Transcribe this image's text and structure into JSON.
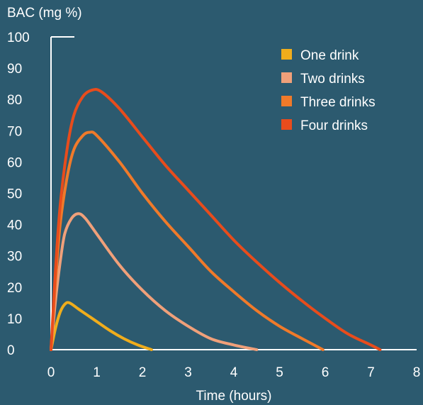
{
  "chart_data": {
    "type": "line",
    "ylabel": "BAC (mg %)",
    "xlabel": "Time (hours)",
    "xlim": [
      0,
      8
    ],
    "ylim": [
      0,
      100
    ],
    "x_ticks": [
      "0",
      "1",
      "2",
      "3",
      "4",
      "5",
      "6",
      "7",
      "8"
    ],
    "y_ticks": [
      "0",
      "10",
      "20",
      "30",
      "40",
      "50",
      "60",
      "70",
      "80",
      "90",
      "100"
    ],
    "grid": false,
    "legend_position": "top-right",
    "series": [
      {
        "name": "One drink",
        "color": "#f0ad1c",
        "points": [
          [
            0,
            0
          ],
          [
            0.1,
            7
          ],
          [
            0.2,
            12
          ],
          [
            0.3,
            14.5
          ],
          [
            0.4,
            15
          ],
          [
            0.6,
            13
          ],
          [
            0.8,
            11
          ],
          [
            1.0,
            9
          ],
          [
            1.3,
            6
          ],
          [
            1.6,
            3.5
          ],
          [
            1.9,
            1.5
          ],
          [
            2.2,
            0
          ]
        ]
      },
      {
        "name": "Two drinks",
        "color": "#f0a07a",
        "points": [
          [
            0,
            0
          ],
          [
            0.1,
            16
          ],
          [
            0.2,
            28
          ],
          [
            0.3,
            37
          ],
          [
            0.45,
            42
          ],
          [
            0.6,
            43.5
          ],
          [
            0.75,
            42
          ],
          [
            1.0,
            37
          ],
          [
            1.5,
            27
          ],
          [
            2.0,
            19
          ],
          [
            2.5,
            12.5
          ],
          [
            3.0,
            7.5
          ],
          [
            3.5,
            3.5
          ],
          [
            4.0,
            1.5
          ],
          [
            4.5,
            0
          ]
        ]
      },
      {
        "name": "Three drinks",
        "color": "#f07a2a",
        "points": [
          [
            0,
            0
          ],
          [
            0.1,
            22
          ],
          [
            0.2,
            40
          ],
          [
            0.35,
            55
          ],
          [
            0.5,
            64
          ],
          [
            0.7,
            68.5
          ],
          [
            0.85,
            69.5
          ],
          [
            1.0,
            68.5
          ],
          [
            1.5,
            60
          ],
          [
            2.0,
            50
          ],
          [
            2.5,
            41
          ],
          [
            3.0,
            33
          ],
          [
            3.5,
            25
          ],
          [
            4.0,
            18.5
          ],
          [
            4.5,
            12.5
          ],
          [
            5.0,
            7.5
          ],
          [
            5.5,
            3.5
          ],
          [
            5.95,
            0
          ]
        ]
      },
      {
        "name": "Four drinks",
        "color": "#e84c1c",
        "points": [
          [
            0,
            0
          ],
          [
            0.1,
            26
          ],
          [
            0.2,
            46
          ],
          [
            0.35,
            64
          ],
          [
            0.5,
            75
          ],
          [
            0.7,
            81
          ],
          [
            0.9,
            83
          ],
          [
            1.1,
            82.5
          ],
          [
            1.5,
            77
          ],
          [
            2.0,
            68
          ],
          [
            2.5,
            59
          ],
          [
            3.0,
            51
          ],
          [
            3.5,
            43
          ],
          [
            4.0,
            35
          ],
          [
            4.5,
            28
          ],
          [
            5.0,
            21.5
          ],
          [
            5.5,
            15.5
          ],
          [
            6.0,
            10
          ],
          [
            6.5,
            5
          ],
          [
            7.0,
            1.5
          ],
          [
            7.2,
            0
          ]
        ]
      }
    ]
  }
}
